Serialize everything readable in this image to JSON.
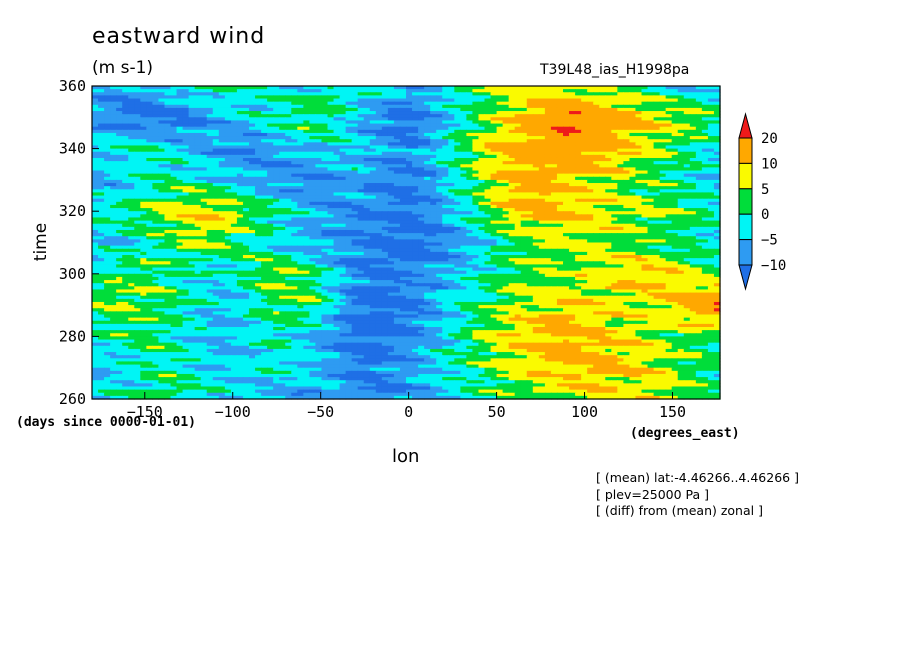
{
  "header": {
    "title": "eastward wind",
    "units": "(m s-1)",
    "run_id": "T39L48_ias_H1998pa"
  },
  "axes": {
    "ylabel": "time",
    "xlabel": "lon",
    "y_units": "(days since 0000-01-01)",
    "x_units": "(degrees_east)"
  },
  "notes": [
    "[ (mean) lat:-4.46266..4.46266 ]",
    "[ plev=25000 Pa ]",
    "[ (diff) from (mean) zonal ]"
  ],
  "colors": {
    "below_-10": "#1f6fe6",
    "-10_-5": "#2e9bf2",
    "-5_0": "#00f5f5",
    "0_5": "#00dd3a",
    "5_10": "#fafa00",
    "10_20": "#ffa800",
    "above_20": "#ee1a1a"
  },
  "chart_data": {
    "type": "heatmap",
    "title": "eastward wind",
    "units": "m s-1",
    "xlabel": "lon",
    "ylabel": "time",
    "x_units": "degrees_east",
    "y_units": "days since 0000-01-01",
    "xlim": [
      -180,
      177
    ],
    "ylim": [
      260,
      360
    ],
    "x_ticks": [
      -150,
      -100,
      -50,
      0,
      50,
      100,
      150
    ],
    "y_ticks": [
      260,
      280,
      300,
      320,
      340,
      360
    ],
    "colorbar": {
      "levels": [
        -10,
        -5,
        0,
        5,
        10,
        20
      ],
      "level_labels": [
        "-10",
        "-5",
        "0",
        "5",
        "10",
        "20"
      ],
      "extend": "both"
    },
    "lon": [
      -180,
      -165,
      -150,
      -135,
      -120,
      -105,
      -90,
      -75,
      -60,
      -45,
      -30,
      -15,
      0,
      15,
      30,
      45,
      60,
      75,
      90,
      105,
      120,
      135,
      150,
      165,
      177
    ],
    "time": [
      260,
      270,
      280,
      290,
      300,
      310,
      320,
      330,
      340,
      350,
      360
    ],
    "values": [
      [
        -4,
        -2,
        1,
        3,
        0,
        -3,
        -5,
        -6,
        -8,
        -6,
        -9,
        -11,
        -8,
        -6,
        -3,
        0,
        2,
        5,
        6,
        8,
        7,
        9,
        6,
        3,
        0
      ],
      [
        -6,
        -4,
        -1,
        0,
        -2,
        -5,
        -4,
        -2,
        -3,
        -7,
        -10,
        -9,
        -7,
        -4,
        -1,
        3,
        7,
        9,
        11,
        12,
        10,
        8,
        5,
        2,
        -1
      ],
      [
        -2,
        0,
        2,
        -1,
        -4,
        -6,
        -3,
        -1,
        -4,
        -8,
        -12,
        -13,
        -10,
        -6,
        0,
        5,
        9,
        12,
        13,
        11,
        8,
        6,
        4,
        3,
        1
      ],
      [
        3,
        5,
        4,
        1,
        -2,
        -5,
        -2,
        2,
        4,
        -2,
        -11,
        -14,
        -11,
        -7,
        -2,
        2,
        6,
        7,
        9,
        8,
        6,
        7,
        10,
        15,
        21
      ],
      [
        -1,
        2,
        3,
        0,
        -3,
        -4,
        1,
        5,
        3,
        -3,
        -9,
        -11,
        -9,
        -7,
        -4,
        0,
        3,
        5,
        4,
        6,
        9,
        11,
        8,
        4,
        2
      ],
      [
        -5,
        -4,
        -1,
        2,
        6,
        3,
        0,
        -3,
        -6,
        -8,
        -9,
        -12,
        -13,
        -11,
        -8,
        -3,
        2,
        4,
        6,
        5,
        4,
        3,
        1,
        -2,
        -4
      ],
      [
        -3,
        0,
        3,
        6,
        9,
        8,
        4,
        0,
        -4,
        -7,
        -10,
        -9,
        -11,
        -8,
        -3,
        4,
        10,
        12,
        11,
        9,
        6,
        5,
        4,
        2,
        0
      ],
      [
        -7,
        -5,
        -2,
        0,
        -2,
        -4,
        -6,
        -9,
        -10,
        -8,
        -6,
        -9,
        -11,
        -7,
        -1,
        6,
        11,
        13,
        9,
        7,
        5,
        2,
        0,
        -3,
        -6
      ],
      [
        -4,
        -2,
        0,
        -3,
        -6,
        -8,
        -10,
        -7,
        -5,
        -3,
        -4,
        -7,
        -9,
        -5,
        2,
        8,
        12,
        14,
        17,
        14,
        11,
        7,
        3,
        -1,
        -4
      ],
      [
        -8,
        -11,
        -13,
        -12,
        -9,
        -6,
        -3,
        0,
        3,
        1,
        -5,
        -10,
        -13,
        -8,
        -2,
        4,
        9,
        13,
        21,
        16,
        12,
        9,
        7,
        4,
        1
      ],
      [
        -5,
        -8,
        -7,
        -3,
        0,
        2,
        -1,
        -4,
        -2,
        1,
        0,
        -3,
        -6,
        -3,
        1,
        3,
        5,
        7,
        6,
        4,
        2,
        0,
        -2,
        -4,
        -6
      ]
    ]
  }
}
